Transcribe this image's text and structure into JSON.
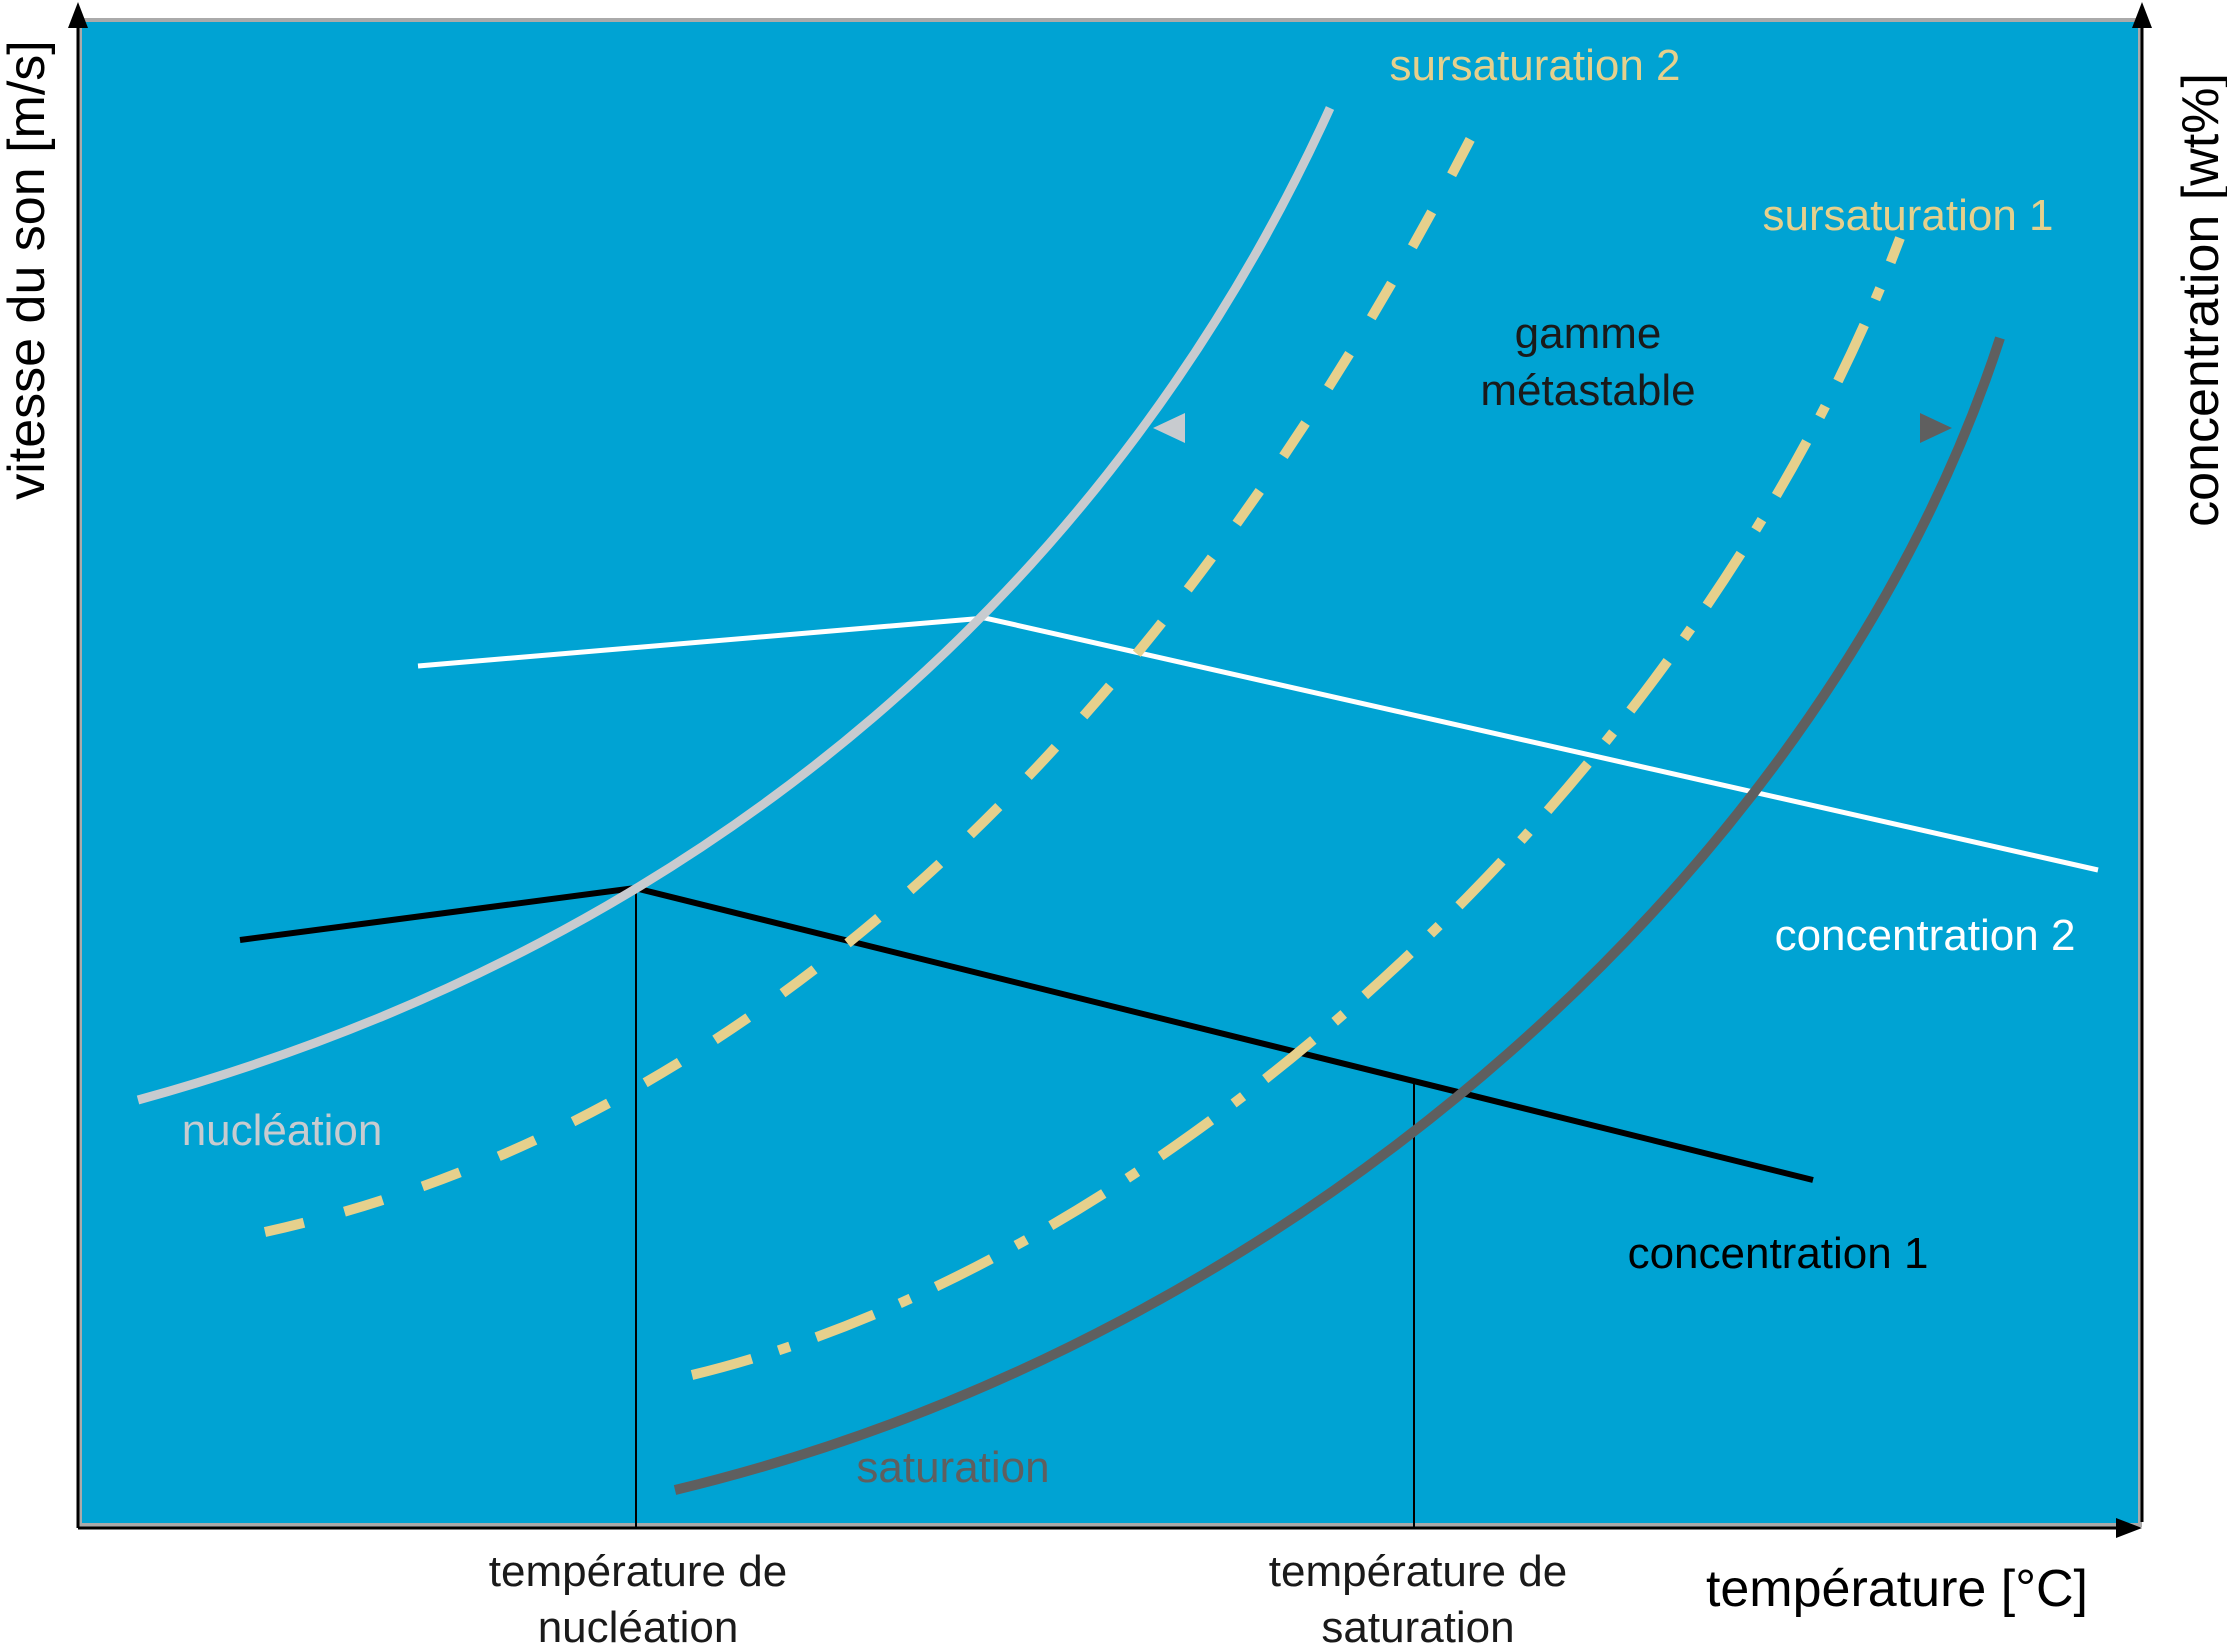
{
  "axes": {
    "left_label": "vitesse du son [m/s]",
    "right_label": "concentration [wt%]",
    "bottom_label": "température [°C]"
  },
  "curves": {
    "nucleation": "nucléation",
    "saturation": "saturation",
    "supersaturation_1": "sursaturation 1",
    "supersaturation_2": "sursaturation 2",
    "concentration_1": "concentration 1",
    "concentration_2": "concentration 2"
  },
  "metastable_range": {
    "line1": "gamme",
    "line2": "métastable"
  },
  "temperature_markers": {
    "nucleation": {
      "line1": "température de",
      "line2": "nucléation"
    },
    "saturation": {
      "line1": "température de",
      "line2": "saturation"
    }
  },
  "colors": {
    "background": "#00a3d3",
    "nucleation_curve": "#c8cbcf",
    "saturation_curve": "#5f5f5f",
    "supersaturation_curves": "#e6d08c",
    "concentration_1_line": "#000000",
    "concentration_2_line": "#ffffff"
  }
}
